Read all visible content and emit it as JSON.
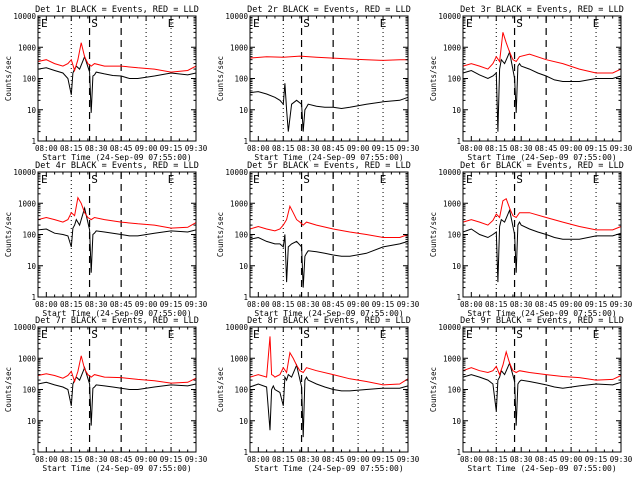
{
  "figure": {
    "xlabel": "Start Time (24-Sep-09 07:55:00)",
    "ylabel": "Counts/sec",
    "xticks": [
      "08:00",
      "08:15",
      "08:30",
      "08:45",
      "09:00",
      "09:15",
      "09:30"
    ],
    "yticks": [
      "1",
      "10",
      "100",
      "1000",
      "10000"
    ],
    "markers": [
      "E",
      "S",
      "E"
    ],
    "colors": {
      "events": "#000000",
      "lld": "#ff0000"
    }
  },
  "chart_data": [
    {
      "type": "line",
      "title": "Det 1r BLACK = Events, RED = LLD",
      "ylim": [
        1,
        10000
      ],
      "xlim": [
        0,
        95
      ],
      "series": [
        {
          "name": "Events",
          "x": [
            0,
            5,
            10,
            15,
            18,
            20,
            21,
            22,
            23,
            25,
            28,
            31,
            32,
            33,
            34,
            35,
            40,
            45,
            50,
            55,
            60,
            70,
            80,
            90,
            95
          ],
          "values": [
            200,
            220,
            180,
            150,
            100,
            30,
            150,
            200,
            250,
            200,
            500,
            160,
            8,
            120,
            130,
            160,
            140,
            125,
            120,
            100,
            100,
            120,
            150,
            130,
            150
          ]
        },
        {
          "name": "LLD",
          "x": [
            0,
            5,
            10,
            15,
            18,
            20,
            22,
            24,
            26,
            28,
            30,
            32,
            34,
            40,
            50,
            60,
            70,
            80,
            90,
            95
          ],
          "values": [
            350,
            400,
            300,
            250,
            300,
            400,
            180,
            400,
            1400,
            500,
            300,
            250,
            300,
            250,
            250,
            220,
            200,
            160,
            180,
            250
          ]
        }
      ]
    },
    {
      "type": "line",
      "title": "Det 2r BLACK = Events, RED = LLD",
      "ylim": [
        1,
        10000
      ],
      "xlim": [
        0,
        95
      ],
      "series": [
        {
          "name": "Events",
          "x": [
            0,
            5,
            10,
            15,
            18,
            20,
            21,
            22,
            23,
            25,
            28,
            31,
            32,
            33,
            34,
            35,
            40,
            45,
            50,
            55,
            60,
            70,
            80,
            90,
            95
          ],
          "values": [
            35,
            38,
            32,
            25,
            20,
            15,
            70,
            10,
            2,
            15,
            20,
            15,
            2,
            10,
            12,
            15,
            13,
            12,
            12,
            11,
            12,
            15,
            18,
            20,
            25
          ]
        },
        {
          "name": "LLD",
          "x": [
            0,
            10,
            20,
            30,
            40,
            50,
            60,
            70,
            80,
            90,
            95
          ],
          "values": [
            450,
            500,
            480,
            520,
            480,
            450,
            420,
            400,
            380,
            400,
            400
          ]
        }
      ]
    },
    {
      "type": "line",
      "title": "Det 3r BLACK = Events, RED = LLD",
      "ylim": [
        1,
        10000
      ],
      "xlim": [
        0,
        95
      ],
      "series": [
        {
          "name": "Events",
          "x": [
            0,
            5,
            10,
            15,
            18,
            20,
            21,
            22,
            23,
            25,
            28,
            31,
            32,
            33,
            34,
            35,
            40,
            45,
            50,
            55,
            60,
            70,
            80,
            90,
            95
          ],
          "values": [
            150,
            180,
            130,
            100,
            120,
            150,
            2,
            200,
            400,
            300,
            700,
            100,
            8,
            250,
            300,
            250,
            200,
            150,
            120,
            90,
            80,
            80,
            100,
            100,
            120
          ]
        },
        {
          "name": "LLD",
          "x": [
            0,
            5,
            10,
            15,
            18,
            20,
            22,
            24,
            26,
            28,
            30,
            32,
            34,
            40,
            50,
            60,
            70,
            80,
            90,
            95
          ],
          "values": [
            250,
            300,
            250,
            200,
            300,
            500,
            350,
            3000,
            1400,
            700,
            400,
            350,
            500,
            600,
            400,
            300,
            200,
            150,
            150,
            200
          ]
        }
      ]
    },
    {
      "type": "line",
      "title": "Det 4r BLACK = Events, RED = LLD",
      "ylim": [
        1,
        10000
      ],
      "xlim": [
        0,
        95
      ],
      "series": [
        {
          "name": "Events",
          "x": [
            0,
            5,
            10,
            15,
            18,
            20,
            21,
            22,
            23,
            25,
            28,
            31,
            32,
            33,
            34,
            35,
            40,
            45,
            50,
            55,
            60,
            70,
            80,
            90,
            95
          ],
          "values": [
            140,
            150,
            110,
            100,
            90,
            40,
            160,
            200,
            300,
            200,
            700,
            140,
            6,
            100,
            110,
            130,
            120,
            110,
            100,
            90,
            90,
            110,
            130,
            120,
            140
          ]
        },
        {
          "name": "LLD",
          "x": [
            0,
            5,
            10,
            15,
            18,
            20,
            22,
            24,
            26,
            28,
            30,
            32,
            34,
            40,
            50,
            60,
            70,
            80,
            90,
            95
          ],
          "values": [
            300,
            350,
            300,
            250,
            300,
            500,
            400,
            1500,
            1000,
            500,
            350,
            300,
            350,
            300,
            250,
            220,
            200,
            160,
            170,
            240
          ]
        }
      ]
    },
    {
      "type": "line",
      "title": "Det 5r BLACK = Events, RED = LLD",
      "ylim": [
        1,
        10000
      ],
      "xlim": [
        0,
        95
      ],
      "series": [
        {
          "name": "Events",
          "x": [
            0,
            5,
            10,
            15,
            18,
            20,
            21,
            22,
            23,
            25,
            28,
            31,
            32,
            33,
            34,
            35,
            40,
            45,
            50,
            55,
            60,
            70,
            80,
            90,
            95
          ],
          "values": [
            70,
            80,
            60,
            50,
            50,
            40,
            100,
            3,
            40,
            50,
            60,
            40,
            2,
            20,
            25,
            30,
            28,
            25,
            22,
            20,
            20,
            25,
            40,
            50,
            60
          ]
        },
        {
          "name": "LLD",
          "x": [
            0,
            5,
            10,
            15,
            18,
            20,
            22,
            24,
            26,
            28,
            30,
            32,
            34,
            40,
            50,
            60,
            70,
            80,
            90,
            95
          ],
          "values": [
            150,
            180,
            150,
            130,
            150,
            200,
            300,
            800,
            500,
            300,
            250,
            200,
            250,
            200,
            150,
            120,
            100,
            80,
            80,
            100
          ]
        }
      ]
    },
    {
      "type": "line",
      "title": "Det 6r BLACK = Events, RED = LLD",
      "ylim": [
        1,
        10000
      ],
      "xlim": [
        0,
        95
      ],
      "series": [
        {
          "name": "Events",
          "x": [
            0,
            5,
            10,
            15,
            18,
            20,
            21,
            22,
            23,
            25,
            28,
            31,
            32,
            33,
            34,
            35,
            40,
            45,
            50,
            55,
            60,
            70,
            80,
            90,
            95
          ],
          "values": [
            120,
            150,
            100,
            80,
            100,
            120,
            3,
            180,
            300,
            250,
            600,
            100,
            6,
            200,
            250,
            200,
            150,
            120,
            100,
            80,
            70,
            70,
            90,
            90,
            110
          ]
        },
        {
          "name": "LLD",
          "x": [
            0,
            5,
            10,
            15,
            18,
            20,
            22,
            24,
            26,
            28,
            30,
            32,
            34,
            40,
            50,
            60,
            70,
            80,
            90,
            95
          ],
          "values": [
            250,
            300,
            250,
            200,
            280,
            450,
            350,
            1200,
            1400,
            700,
            400,
            350,
            500,
            500,
            350,
            250,
            180,
            140,
            140,
            180
          ]
        }
      ]
    },
    {
      "type": "line",
      "title": "Det 7r BLACK = Events, RED = LLD",
      "ylim": [
        1,
        10000
      ],
      "xlim": [
        0,
        95
      ],
      "series": [
        {
          "name": "Events",
          "x": [
            0,
            5,
            10,
            15,
            18,
            20,
            21,
            22,
            23,
            25,
            28,
            31,
            32,
            33,
            34,
            35,
            40,
            45,
            50,
            55,
            60,
            70,
            80,
            90,
            95
          ],
          "values": [
            150,
            170,
            140,
            120,
            100,
            30,
            150,
            200,
            250,
            200,
            500,
            150,
            7,
            110,
            120,
            140,
            130,
            120,
            110,
            100,
            100,
            120,
            140,
            130,
            150
          ]
        },
        {
          "name": "LLD",
          "x": [
            0,
            5,
            10,
            15,
            18,
            20,
            22,
            24,
            26,
            28,
            30,
            32,
            34,
            40,
            50,
            60,
            70,
            80,
            90,
            95
          ],
          "values": [
            280,
            320,
            280,
            230,
            280,
            380,
            180,
            380,
            1200,
            450,
            300,
            250,
            300,
            250,
            240,
            210,
            190,
            160,
            170,
            230
          ]
        }
      ]
    },
    {
      "type": "line",
      "title": "Det 8r BLACK = Events, RED = LLD",
      "ylim": [
        1,
        10000
      ],
      "xlim": [
        0,
        95
      ],
      "series": [
        {
          "name": "Events",
          "x": [
            0,
            5,
            10,
            12,
            13,
            14,
            15,
            18,
            20,
            21,
            22,
            23,
            25,
            28,
            31,
            32,
            33,
            34,
            35,
            40,
            45,
            50,
            55,
            60,
            70,
            80,
            90,
            95
          ],
          "values": [
            120,
            150,
            120,
            5,
            100,
            130,
            100,
            80,
            30,
            250,
            200,
            300,
            250,
            600,
            120,
            3,
            200,
            250,
            200,
            150,
            120,
            100,
            90,
            90,
            100,
            110,
            110,
            130
          ]
        },
        {
          "name": "LLD",
          "x": [
            0,
            5,
            10,
            12,
            13,
            14,
            15,
            18,
            20,
            22,
            24,
            26,
            28,
            30,
            32,
            34,
            40,
            50,
            60,
            70,
            80,
            90,
            95
          ],
          "values": [
            250,
            300,
            250,
            5000,
            300,
            280,
            250,
            300,
            500,
            350,
            1500,
            1000,
            600,
            400,
            350,
            500,
            400,
            300,
            220,
            180,
            140,
            150,
            220
          ]
        }
      ]
    },
    {
      "type": "line",
      "title": "Det 9r BLACK = Events, RED = LLD",
      "ylim": [
        1,
        10000
      ],
      "xlim": [
        0,
        95
      ],
      "series": [
        {
          "name": "Events",
          "x": [
            0,
            5,
            10,
            15,
            18,
            20,
            21,
            22,
            23,
            25,
            28,
            31,
            32,
            33,
            34,
            35,
            40,
            45,
            50,
            55,
            60,
            70,
            80,
            90,
            95
          ],
          "values": [
            250,
            300,
            250,
            200,
            150,
            20,
            200,
            250,
            400,
            300,
            700,
            180,
            7,
            150,
            180,
            200,
            180,
            160,
            140,
            120,
            110,
            130,
            150,
            140,
            170
          ]
        },
        {
          "name": "LLD",
          "x": [
            0,
            5,
            10,
            15,
            18,
            20,
            22,
            24,
            26,
            28,
            30,
            32,
            34,
            40,
            50,
            60,
            70,
            80,
            90,
            95
          ],
          "values": [
            400,
            500,
            400,
            350,
            400,
            550,
            300,
            600,
            1600,
            700,
            400,
            350,
            400,
            350,
            300,
            260,
            240,
            200,
            210,
            280
          ]
        }
      ]
    }
  ]
}
